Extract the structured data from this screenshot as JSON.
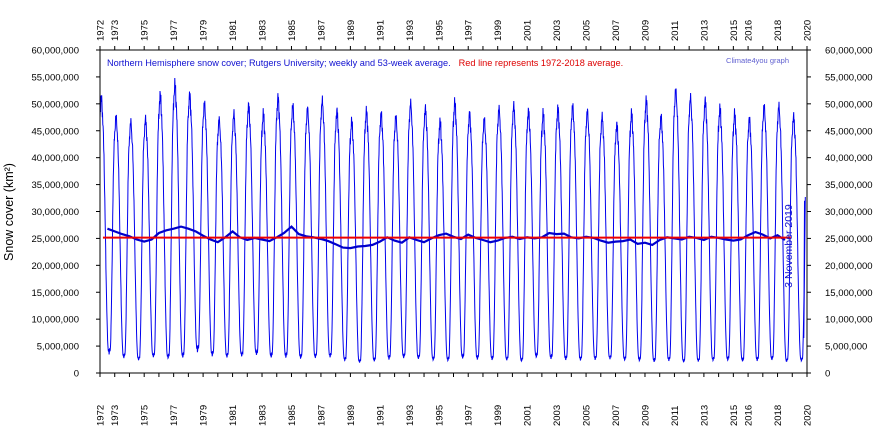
{
  "chart_data": {
    "type": "line",
    "title_prefix": "Northern Hemisphere snow cover; Rutgers University; weekly and 53-week average.",
    "title_suffix": "Red line represents 1972-2018 average.",
    "credit": "Climate4you graph",
    "ylabel": "Snow cover (km²)",
    "xlabel": "",
    "date_label": "3 November 2019",
    "xlim": [
      1972,
      2020
    ],
    "ylim": [
      0,
      60000000
    ],
    "grid": false,
    "x_ticks_top": [
      "1972",
      "1973",
      "1975",
      "1977",
      "1979",
      "1981",
      "1983",
      "1985",
      "1987",
      "1989",
      "1991",
      "1993",
      "1995",
      "1997",
      "1999",
      "2001",
      "2003",
      "2005",
      "2007",
      "2009",
      "2011",
      "2013",
      "2015",
      "2016",
      "2018",
      "2020"
    ],
    "x_ticks_bottom": [
      "1972",
      "1973",
      "1975",
      "1977",
      "1979",
      "1981",
      "1983",
      "1985",
      "1987",
      "1989",
      "1991",
      "1993",
      "1995",
      "1997",
      "1999",
      "2001",
      "2003",
      "2005",
      "2007",
      "2009",
      "2011",
      "2013",
      "2015",
      "2016",
      "2018",
      "2020"
    ],
    "y_ticks_left": [
      "0",
      "5,000,000",
      "10,000,000",
      "15,000,000",
      "20,000,000",
      "25,000,000",
      "30,000,000",
      "35,000,000",
      "40,000,000",
      "45,000,000",
      "50,000,000",
      "55,000,000",
      "60,000,000"
    ],
    "y_ticks_right": [
      "0",
      "5,000,000",
      "10,000,000",
      "15,000,000",
      "20,000,000",
      "25,000,000",
      "30,000,000",
      "35,000,000",
      "40,000,000",
      "45,000,000",
      "50,000,000",
      "55,000,000",
      "60,000,000"
    ],
    "series": [
      {
        "name": "weekly",
        "color": "#0000ee",
        "start_year": 1972,
        "annual_peaks": [
          51500000,
          48000000,
          47000000,
          47500000,
          52000000,
          54000000,
          52000000,
          50500000,
          47500000,
          48500000,
          50000000,
          48500000,
          51500000,
          50000000,
          49500000,
          51000000,
          49000000,
          47000000,
          49000000,
          48500000,
          48000000,
          50500000,
          49500000,
          47000000,
          50500000,
          48500000,
          47500000,
          49500000,
          50000000,
          49000000,
          48500000,
          49500000,
          50000000,
          49000000,
          48000000,
          46500000,
          48500000,
          51000000,
          48000000,
          53000000,
          51500000,
          51000000,
          49500000,
          48500000,
          47500000,
          50000000,
          50000000,
          48000000
        ],
        "annual_minima": [
          4000000,
          3200000,
          2700000,
          3300000,
          3100000,
          3300000,
          4500000,
          3600000,
          3300000,
          3500000,
          3800000,
          3300000,
          3300000,
          3100000,
          3200000,
          3300000,
          2600000,
          2200000,
          2500000,
          2900000,
          3200000,
          3000000,
          2700000,
          2600000,
          3100000,
          2900000,
          2800000,
          2700000,
          2500000,
          3300000,
          3000000,
          2800000,
          2700000,
          2800000,
          2900000,
          2700000,
          2600000,
          2400000,
          2600000,
          2300000,
          2400000,
          2600000,
          2700000,
          2500000,
          2600000,
          2800000,
          2400000,
          2500000
        ],
        "last_value": 32000000
      },
      {
        "name": "53-week average",
        "color": "#0000cc",
        "x": [
          1972.5,
          1973.0,
          1973.5,
          1974.0,
          1974.5,
          1975.0,
          1975.5,
          1976.0,
          1976.5,
          1977.0,
          1977.5,
          1978.0,
          1978.5,
          1979.0,
          1979.5,
          1980.0,
          1980.5,
          1981.0,
          1981.5,
          1982.0,
          1982.5,
          1983.0,
          1983.5,
          1984.0,
          1984.5,
          1985.0,
          1985.5,
          1986.0,
          1986.5,
          1987.0,
          1987.5,
          1988.0,
          1988.5,
          1989.0,
          1989.5,
          1990.0,
          1990.5,
          1991.0,
          1991.5,
          1992.0,
          1992.5,
          1993.0,
          1993.5,
          1994.0,
          1994.5,
          1995.0,
          1995.5,
          1996.0,
          1996.5,
          1997.0,
          1997.5,
          1998.0,
          1998.5,
          1999.0,
          1999.5,
          2000.0,
          2000.5,
          2001.0,
          2001.5,
          2002.0,
          2002.5,
          2003.0,
          2003.5,
          2004.0,
          2004.5,
          2005.0,
          2005.5,
          2006.0,
          2006.5,
          2007.0,
          2007.5,
          2008.0,
          2008.5,
          2009.0,
          2009.5,
          2010.0,
          2010.5,
          2011.0,
          2011.5,
          2012.0,
          2012.5,
          2013.0,
          2013.5,
          2014.0,
          2014.5,
          2015.0,
          2015.5,
          2016.0,
          2016.5,
          2017.0,
          2017.5,
          2018.0,
          2018.5
        ],
        "y": [
          26800000,
          26300000,
          25800000,
          25400000,
          24800000,
          24400000,
          24800000,
          26000000,
          26500000,
          26800000,
          27200000,
          26800000,
          26300000,
          25500000,
          24800000,
          24300000,
          25200000,
          26300000,
          25200000,
          24700000,
          25100000,
          24800000,
          24500000,
          25200000,
          26000000,
          27200000,
          25800000,
          25400000,
          25200000,
          24900000,
          24500000,
          23900000,
          23300000,
          23200000,
          23500000,
          23600000,
          23800000,
          24400000,
          25200000,
          24600000,
          24200000,
          25200000,
          24700000,
          24300000,
          25000000,
          25600000,
          25900000,
          25300000,
          24900000,
          25700000,
          25100000,
          24700000,
          24300000,
          24600000,
          25100000,
          25300000,
          24900000,
          25200000,
          25000000,
          25200000,
          26000000,
          25800000,
          25900000,
          25200000,
          25000000,
          25300000,
          25100000,
          24600000,
          24200000,
          24400000,
          24500000,
          24800000,
          24000000,
          24200000,
          23800000,
          24700000,
          25200000,
          25000000,
          24800000,
          25300000,
          25100000,
          24700000,
          25300000,
          25100000,
          24800000,
          24600000,
          24800000,
          25600000,
          26200000,
          25700000,
          25000000,
          25600000,
          24700000
        ]
      },
      {
        "name": "1972-2018 average",
        "color": "#ee0000",
        "value": 25150000
      }
    ]
  }
}
